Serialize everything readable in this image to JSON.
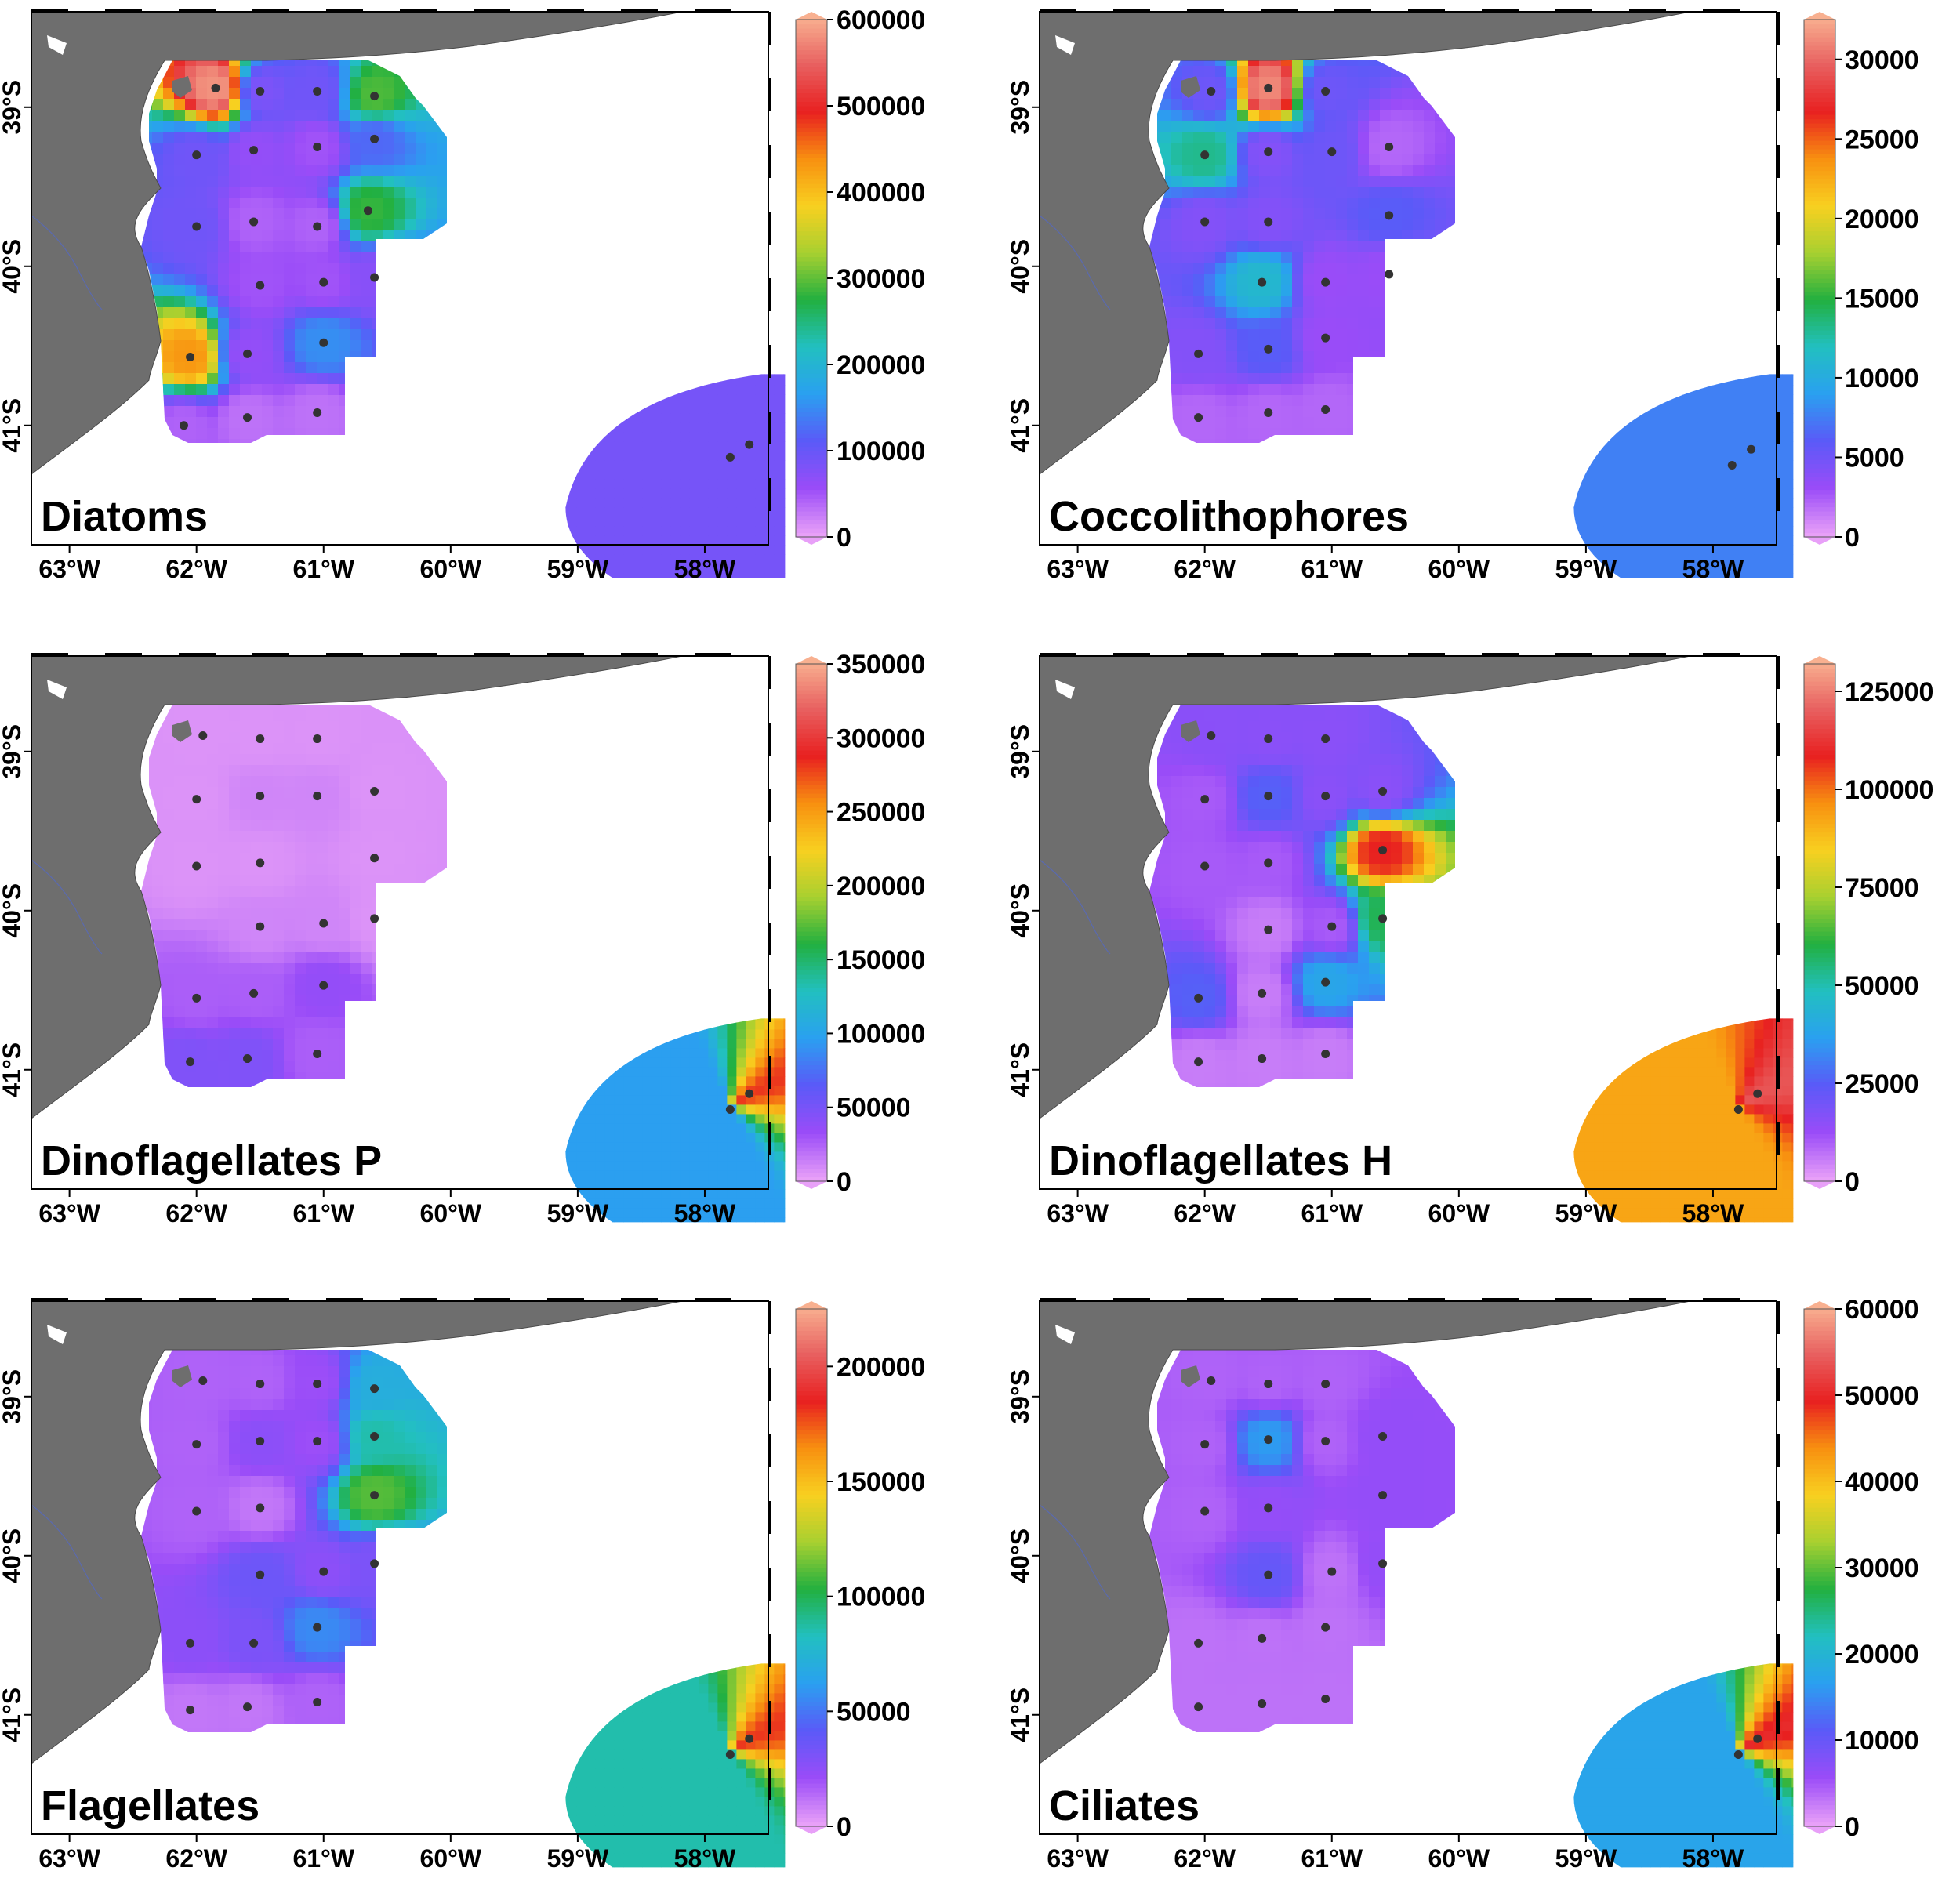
{
  "figure": {
    "x_tick_labels": [
      "63°W",
      "62°W",
      "61°W",
      "60°W",
      "59°W",
      "58°W"
    ],
    "y_tick_labels": [
      "39°S",
      "40°S",
      "41°S"
    ],
    "x_ticks_deg": [
      -63,
      -62,
      -61,
      -60,
      -59,
      -58
    ],
    "y_ticks_deg": [
      -39,
      -40,
      -41
    ],
    "lon_range": [
      -63.3,
      -57.5
    ],
    "lat_range": [
      -41.75,
      -38.4
    ],
    "land_color": "#6e6e6e",
    "station_color": "#333333",
    "colorscale": [
      "#e8a0f8",
      "#9a4cf8",
      "#5a5af8",
      "#2aa0f0",
      "#22c0c0",
      "#22b040",
      "#a8d030",
      "#f8d020",
      "#f89010",
      "#e82020",
      "#e86060",
      "#f8b090"
    ]
  },
  "panels": [
    {
      "id": "diatoms",
      "title": "Diatoms",
      "cb_ticks": [
        "0",
        "100000",
        "200000",
        "300000",
        "400000",
        "500000",
        "600000"
      ],
      "vmax": 600000,
      "offshore_value": 85000,
      "offshore_gradient": false,
      "stations": [
        {
          "lon": -61.85,
          "lat": -38.88,
          "v": 580000
        },
        {
          "lon": -61.5,
          "lat": -38.9,
          "v": 80000
        },
        {
          "lon": -61.05,
          "lat": -38.9,
          "v": 90000
        },
        {
          "lon": -60.6,
          "lat": -38.93,
          "v": 290000
        },
        {
          "lon": -62.0,
          "lat": -39.3,
          "v": 90000
        },
        {
          "lon": -61.55,
          "lat": -39.27,
          "v": 60000
        },
        {
          "lon": -61.05,
          "lat": -39.25,
          "v": 50000
        },
        {
          "lon": -60.6,
          "lat": -39.2,
          "v": 120000
        },
        {
          "lon": -62.0,
          "lat": -39.75,
          "v": 90000
        },
        {
          "lon": -61.55,
          "lat": -39.72,
          "v": 40000
        },
        {
          "lon": -61.05,
          "lat": -39.75,
          "v": 40000
        },
        {
          "lon": -60.65,
          "lat": -39.65,
          "v": 280000
        },
        {
          "lon": -61.5,
          "lat": -40.12,
          "v": 50000
        },
        {
          "lon": -61.0,
          "lat": -40.1,
          "v": 50000
        },
        {
          "lon": -60.6,
          "lat": -40.07,
          "v": 70000
        },
        {
          "lon": -62.05,
          "lat": -40.57,
          "v": 430000
        },
        {
          "lon": -61.6,
          "lat": -40.55,
          "v": 60000
        },
        {
          "lon": -61.0,
          "lat": -40.48,
          "v": 150000
        },
        {
          "lon": -62.1,
          "lat": -41.0,
          "v": 40000
        },
        {
          "lon": -61.6,
          "lat": -40.95,
          "v": 30000
        },
        {
          "lon": -61.05,
          "lat": -40.92,
          "v": 30000
        },
        {
          "lon": -57.8,
          "lat": -41.2,
          "v": 85000
        },
        {
          "lon": -57.65,
          "lat": -41.12,
          "v": 85000
        }
      ]
    },
    {
      "id": "coccolithophores",
      "title": "Coccolithophores",
      "cb_ticks": [
        "0",
        "5000",
        "10000",
        "15000",
        "20000",
        "25000",
        "30000"
      ],
      "vmax": 32500,
      "offshore_value": 7500,
      "offshore_gradient": false,
      "stations": [
        {
          "lon": -61.95,
          "lat": -38.9,
          "v": 5000
        },
        {
          "lon": -61.5,
          "lat": -38.88,
          "v": 31000
        },
        {
          "lon": -61.05,
          "lat": -38.9,
          "v": 5000
        },
        {
          "lon": -62.0,
          "lat": -39.3,
          "v": 13000
        },
        {
          "lon": -61.5,
          "lat": -39.28,
          "v": 4000
        },
        {
          "lon": -61.0,
          "lat": -39.28,
          "v": 5000
        },
        {
          "lon": -60.55,
          "lat": -39.25,
          "v": 2000
        },
        {
          "lon": -62.0,
          "lat": -39.72,
          "v": 4000
        },
        {
          "lon": -61.5,
          "lat": -39.72,
          "v": 4000
        },
        {
          "lon": -60.55,
          "lat": -39.68,
          "v": 6000
        },
        {
          "lon": -61.55,
          "lat": -40.1,
          "v": 11000
        },
        {
          "lon": -61.05,
          "lat": -40.1,
          "v": 3000
        },
        {
          "lon": -60.55,
          "lat": -40.05,
          "v": 3000
        },
        {
          "lon": -62.05,
          "lat": -40.55,
          "v": 4000
        },
        {
          "lon": -61.5,
          "lat": -40.52,
          "v": 6000
        },
        {
          "lon": -61.05,
          "lat": -40.45,
          "v": 3000
        },
        {
          "lon": -62.05,
          "lat": -40.95,
          "v": 2000
        },
        {
          "lon": -61.5,
          "lat": -40.92,
          "v": 2000
        },
        {
          "lon": -61.05,
          "lat": -40.9,
          "v": 2000
        },
        {
          "lon": -57.85,
          "lat": -41.25,
          "v": 7500
        },
        {
          "lon": -57.7,
          "lat": -41.15,
          "v": 7500
        }
      ]
    },
    {
      "id": "dinoflagellates-p",
      "title": "Dinoflagellates P",
      "cb_ticks": [
        "0",
        "50000",
        "100000",
        "150000",
        "200000",
        "250000",
        "300000",
        "350000"
      ],
      "vmax": 350000,
      "offshore_value": 95000,
      "offshore_gradient": true,
      "offshore_high": 280000,
      "stations": [
        {
          "lon": -61.95,
          "lat": -38.9,
          "v": 5000
        },
        {
          "lon": -61.5,
          "lat": -38.92,
          "v": 5000
        },
        {
          "lon": -61.05,
          "lat": -38.92,
          "v": 5000
        },
        {
          "lon": -62.0,
          "lat": -39.3,
          "v": 5000
        },
        {
          "lon": -61.5,
          "lat": -39.28,
          "v": 10000
        },
        {
          "lon": -61.05,
          "lat": -39.28,
          "v": 10000
        },
        {
          "lon": -60.6,
          "lat": -39.25,
          "v": 5000
        },
        {
          "lon": -62.0,
          "lat": -39.72,
          "v": 5000
        },
        {
          "lon": -61.5,
          "lat": -39.7,
          "v": 5000
        },
        {
          "lon": -60.6,
          "lat": -39.67,
          "v": 5000
        },
        {
          "lon": -61.5,
          "lat": -40.1,
          "v": 10000
        },
        {
          "lon": -61.0,
          "lat": -40.08,
          "v": 10000
        },
        {
          "lon": -60.6,
          "lat": -40.05,
          "v": 5000
        },
        {
          "lon": -62.0,
          "lat": -40.55,
          "v": 25000
        },
        {
          "lon": -61.55,
          "lat": -40.52,
          "v": 25000
        },
        {
          "lon": -61.0,
          "lat": -40.47,
          "v": 35000
        },
        {
          "lon": -62.05,
          "lat": -40.95,
          "v": 45000
        },
        {
          "lon": -61.6,
          "lat": -40.93,
          "v": 45000
        },
        {
          "lon": -61.05,
          "lat": -40.9,
          "v": 25000
        },
        {
          "lon": -57.8,
          "lat": -41.25,
          "v": 95000
        },
        {
          "lon": -57.65,
          "lat": -41.15,
          "v": 95000
        }
      ]
    },
    {
      "id": "dinoflagellates-h",
      "title": "Dinoflagellates H",
      "cb_ticks": [
        "0",
        "25000",
        "50000",
        "75000",
        "100000",
        "125000"
      ],
      "vmax": 132000,
      "offshore_value": 92000,
      "offshore_gradient": true,
      "offshore_high": 118000,
      "stations": [
        {
          "lon": -61.95,
          "lat": -38.9,
          "v": 15000
        },
        {
          "lon": -61.5,
          "lat": -38.92,
          "v": 15000
        },
        {
          "lon": -61.05,
          "lat": -38.92,
          "v": 15000
        },
        {
          "lon": -62.0,
          "lat": -39.3,
          "v": 10000
        },
        {
          "lon": -61.5,
          "lat": -39.28,
          "v": 25000
        },
        {
          "lon": -61.05,
          "lat": -39.28,
          "v": 15000
        },
        {
          "lon": -60.6,
          "lat": -39.25,
          "v": 15000
        },
        {
          "lon": -62.0,
          "lat": -39.72,
          "v": 10000
        },
        {
          "lon": -61.5,
          "lat": -39.7,
          "v": 10000
        },
        {
          "lon": -60.6,
          "lat": -39.62,
          "v": 108000
        },
        {
          "lon": -61.5,
          "lat": -40.12,
          "v": 5000
        },
        {
          "lon": -61.0,
          "lat": -40.1,
          "v": 10000
        },
        {
          "lon": -60.6,
          "lat": -40.05,
          "v": 58000
        },
        {
          "lon": -62.05,
          "lat": -40.55,
          "v": 25000
        },
        {
          "lon": -61.55,
          "lat": -40.52,
          "v": 5000
        },
        {
          "lon": -61.05,
          "lat": -40.45,
          "v": 38000
        },
        {
          "lon": -62.05,
          "lat": -40.95,
          "v": 5000
        },
        {
          "lon": -61.55,
          "lat": -40.93,
          "v": 5000
        },
        {
          "lon": -61.05,
          "lat": -40.9,
          "v": 5000
        },
        {
          "lon": -57.8,
          "lat": -41.25,
          "v": 92000
        },
        {
          "lon": -57.65,
          "lat": -41.15,
          "v": 92000
        }
      ]
    },
    {
      "id": "flagellates",
      "title": "Flagellates",
      "cb_ticks": [
        "0",
        "50000",
        "100000",
        "150000",
        "200000"
      ],
      "vmax": 225000,
      "offshore_value": 85000,
      "offshore_gradient": true,
      "offshore_high": 180000,
      "stations": [
        {
          "lon": -61.95,
          "lat": -38.9,
          "v": 15000
        },
        {
          "lon": -61.5,
          "lat": -38.92,
          "v": 15000
        },
        {
          "lon": -61.05,
          "lat": -38.92,
          "v": 20000
        },
        {
          "lon": -60.6,
          "lat": -38.95,
          "v": 70000
        },
        {
          "lon": -62.0,
          "lat": -39.3,
          "v": 15000
        },
        {
          "lon": -61.5,
          "lat": -39.28,
          "v": 25000
        },
        {
          "lon": -61.05,
          "lat": -39.28,
          "v": 20000
        },
        {
          "lon": -60.6,
          "lat": -39.25,
          "v": 85000
        },
        {
          "lon": -62.0,
          "lat": -39.72,
          "v": 15000
        },
        {
          "lon": -61.5,
          "lat": -39.7,
          "v": 10000
        },
        {
          "lon": -60.6,
          "lat": -39.62,
          "v": 110000
        },
        {
          "lon": -61.5,
          "lat": -40.12,
          "v": 35000
        },
        {
          "lon": -61.0,
          "lat": -40.1,
          "v": 25000
        },
        {
          "lon": -60.6,
          "lat": -40.05,
          "v": 30000
        },
        {
          "lon": -62.05,
          "lat": -40.55,
          "v": 25000
        },
        {
          "lon": -61.55,
          "lat": -40.55,
          "v": 30000
        },
        {
          "lon": -61.05,
          "lat": -40.45,
          "v": 55000
        },
        {
          "lon": -62.05,
          "lat": -40.97,
          "v": 10000
        },
        {
          "lon": -61.6,
          "lat": -40.95,
          "v": 10000
        },
        {
          "lon": -61.05,
          "lat": -40.92,
          "v": 15000
        },
        {
          "lon": -57.8,
          "lat": -41.25,
          "v": 85000
        },
        {
          "lon": -57.65,
          "lat": -41.15,
          "v": 85000
        }
      ]
    },
    {
      "id": "ciliates",
      "title": "Ciliates",
      "cb_ticks": [
        "0",
        "10000",
        "20000",
        "30000",
        "40000",
        "50000",
        "60000"
      ],
      "vmax": 60000,
      "offshore_value": 17000,
      "offshore_gradient": true,
      "offshore_high": 50000,
      "stations": [
        {
          "lon": -61.95,
          "lat": -38.9,
          "v": 4000
        },
        {
          "lon": -61.5,
          "lat": -38.92,
          "v": 4000
        },
        {
          "lon": -61.05,
          "lat": -38.92,
          "v": 4000
        },
        {
          "lon": -62.0,
          "lat": -39.3,
          "v": 4000
        },
        {
          "lon": -61.5,
          "lat": -39.27,
          "v": 16000
        },
        {
          "lon": -61.05,
          "lat": -39.28,
          "v": 4000
        },
        {
          "lon": -60.6,
          "lat": -39.25,
          "v": 6000
        },
        {
          "lon": -62.0,
          "lat": -39.72,
          "v": 4000
        },
        {
          "lon": -61.5,
          "lat": -39.7,
          "v": 6000
        },
        {
          "lon": -60.6,
          "lat": -39.62,
          "v": 6000
        },
        {
          "lon": -61.5,
          "lat": -40.12,
          "v": 10000
        },
        {
          "lon": -61.0,
          "lat": -40.1,
          "v": 3000
        },
        {
          "lon": -60.6,
          "lat": -40.05,
          "v": 6000
        },
        {
          "lon": -62.05,
          "lat": -40.55,
          "v": 3000
        },
        {
          "lon": -61.55,
          "lat": -40.52,
          "v": 3000
        },
        {
          "lon": -61.05,
          "lat": -40.45,
          "v": 3000
        },
        {
          "lon": -62.05,
          "lat": -40.95,
          "v": 3000
        },
        {
          "lon": -61.55,
          "lat": -40.93,
          "v": 3000
        },
        {
          "lon": -61.05,
          "lat": -40.9,
          "v": 3000
        },
        {
          "lon": -57.8,
          "lat": -41.25,
          "v": 17000
        },
        {
          "lon": -57.65,
          "lat": -41.15,
          "v": 17000
        }
      ]
    }
  ]
}
